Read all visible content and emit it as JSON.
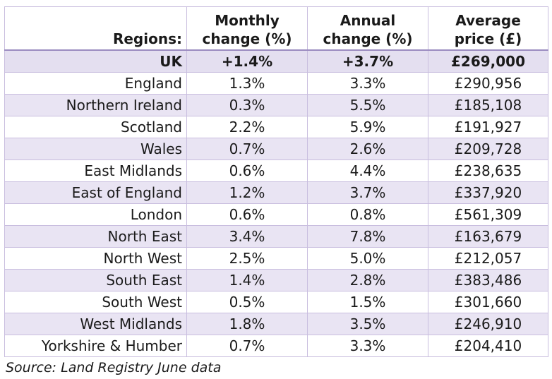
{
  "table": {
    "headers": {
      "region": "Regions:",
      "monthly_line1": "Monthly",
      "monthly_line2": "change (%)",
      "annual_line1": "Annual",
      "annual_line2": "change (%)",
      "price_line1": "Average",
      "price_line2": "price (£)"
    },
    "rows": [
      {
        "region": "UK",
        "monthly": "+1.4%",
        "annual": "+3.7%",
        "price": "£269,000"
      },
      {
        "region": "England",
        "monthly": "1.3%",
        "annual": "3.3%",
        "price": "£290,956"
      },
      {
        "region": "Northern Ireland",
        "monthly": "0.3%",
        "annual": "5.5%",
        "price": "£185,108"
      },
      {
        "region": "Scotland",
        "monthly": "2.2%",
        "annual": "5.9%",
        "price": "£191,927"
      },
      {
        "region": "Wales",
        "monthly": "0.7%",
        "annual": "2.6%",
        "price": "£209,728"
      },
      {
        "region": "East Midlands",
        "monthly": "0.6%",
        "annual": "4.4%",
        "price": "£238,635"
      },
      {
        "region": "East of England",
        "monthly": "1.2%",
        "annual": "3.7%",
        "price": "£337,920"
      },
      {
        "region": "London",
        "monthly": "0.6%",
        "annual": "0.8%",
        "price": "£561,309"
      },
      {
        "region": "North East",
        "monthly": "3.4%",
        "annual": "7.8%",
        "price": "£163,679"
      },
      {
        "region": "North West",
        "monthly": "2.5%",
        "annual": "5.0%",
        "price": "£212,057"
      },
      {
        "region": "South East",
        "monthly": "1.4%",
        "annual": "2.8%",
        "price": "£383,486"
      },
      {
        "region": "South West",
        "monthly": "0.5%",
        "annual": "1.5%",
        "price": "£301,660"
      },
      {
        "region": "West Midlands",
        "monthly": "1.8%",
        "annual": "3.5%",
        "price": "£246,910"
      },
      {
        "region": "Yorkshire & Humber",
        "monthly": "0.7%",
        "annual": "3.3%",
        "price": "£204,410"
      }
    ]
  },
  "source": "Source: Land Registry June data",
  "colors": {
    "row_shade": "#e9e4f3",
    "border": "#c9bedf",
    "header_rule": "#9b8cc0"
  }
}
